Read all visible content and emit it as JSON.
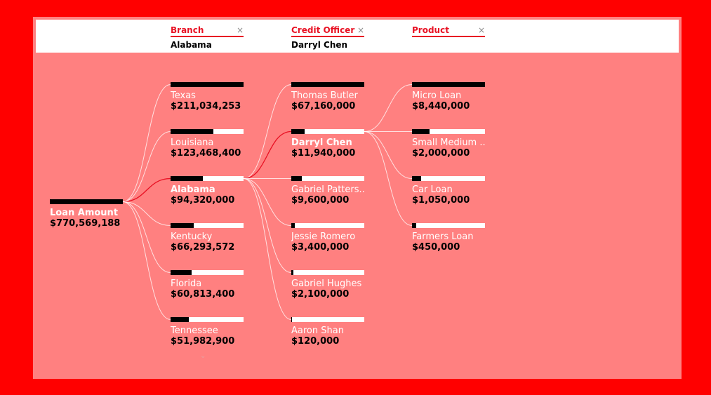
{
  "headers": [
    {
      "title": "Branch",
      "value": "Alabama",
      "close": "×"
    },
    {
      "title": "Credit Officer",
      "value": "Darryl Chen",
      "close": "×"
    },
    {
      "title": "Product",
      "value": "",
      "close": "×"
    }
  ],
  "root": {
    "label": "Loan Amount",
    "value": "$770,569,188",
    "fraction": 1.0
  },
  "branches": [
    {
      "label": "Texas",
      "value": "$211,034,253",
      "fraction": 1.0
    },
    {
      "label": "Louisiana",
      "value": "$123,468,400",
      "fraction": 0.585
    },
    {
      "label": "Alabama",
      "value": "$94,320,000",
      "fraction": 0.447,
      "selected": true
    },
    {
      "label": "Kentucky",
      "value": "$66,293,572",
      "fraction": 0.314
    },
    {
      "label": "Florida",
      "value": "$60,813,400",
      "fraction": 0.288
    },
    {
      "label": "Tennessee",
      "value": "$51,982,900",
      "fraction": 0.246
    }
  ],
  "officers": [
    {
      "label": "Thomas Butler",
      "value": "$67,160,000",
      "fraction": 1.0
    },
    {
      "label": "Darryl Chen",
      "value": "$11,940,000",
      "fraction": 0.178,
      "selected": true
    },
    {
      "label": "Gabriel Patters...",
      "value": "$9,600,000",
      "fraction": 0.143
    },
    {
      "label": "Jessie Romero",
      "value": "$3,400,000",
      "fraction": 0.051
    },
    {
      "label": "Gabriel Hughes",
      "value": "$2,100,000",
      "fraction": 0.031
    },
    {
      "label": "Aaron Shan",
      "value": "$120,000",
      "fraction": 0.002
    }
  ],
  "products": [
    {
      "label": "Micro Loan",
      "value": "$8,440,000",
      "fraction": 1.0
    },
    {
      "label": "Small Medium ...",
      "value": "$2,000,000",
      "fraction": 0.237
    },
    {
      "label": "Car Loan",
      "value": "$1,050,000",
      "fraction": 0.124
    },
    {
      "label": "Farmers Loan",
      "value": "$450,000",
      "fraction": 0.053
    }
  ],
  "expand_icon": "chevron-down-icon",
  "colors": {
    "accent": "#e81123",
    "background": "#ff8080",
    "border": "#ff0000",
    "bar_track": "#ffffff",
    "bar_fill": "#000000",
    "selected_link": "#e81123"
  }
}
